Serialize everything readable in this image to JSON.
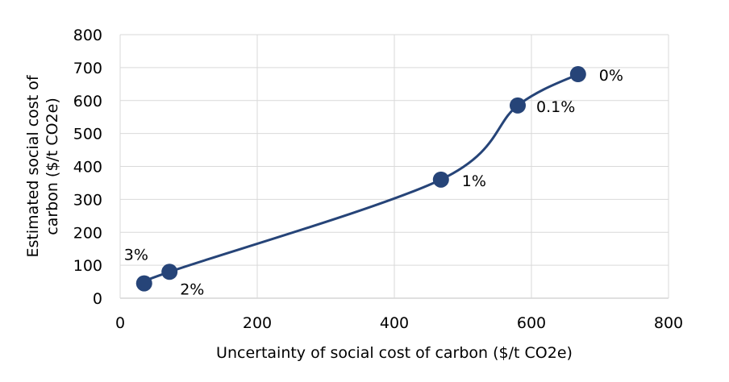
{
  "chart_data": {
    "type": "scatter",
    "xlabel": "Uncertainty of social cost of carbon ($/t CO2e)",
    "ylabel_lines": [
      "Estimated social cost of",
      "carbon ($/t CO2e)"
    ],
    "xlim": [
      0,
      800
    ],
    "ylim": [
      0,
      800
    ],
    "x_ticks": [
      0,
      200,
      400,
      600,
      800
    ],
    "y_ticks": [
      0,
      100,
      200,
      300,
      400,
      500,
      600,
      700,
      800
    ],
    "grid": true,
    "smoothed_line": true,
    "colors": {
      "series": "#264478",
      "grid": "#d9d9d9"
    },
    "points": [
      {
        "x": 35,
        "y": 45,
        "label": "3%",
        "label_pos": "above-left"
      },
      {
        "x": 72,
        "y": 80,
        "label": "2%",
        "label_pos": "below-right"
      },
      {
        "x": 468,
        "y": 360,
        "label": "1%",
        "label_pos": "right"
      },
      {
        "x": 580,
        "y": 585,
        "label": "0.1%",
        "label_pos": "right-below"
      },
      {
        "x": 668,
        "y": 680,
        "label": "0%",
        "label_pos": "right"
      }
    ]
  }
}
